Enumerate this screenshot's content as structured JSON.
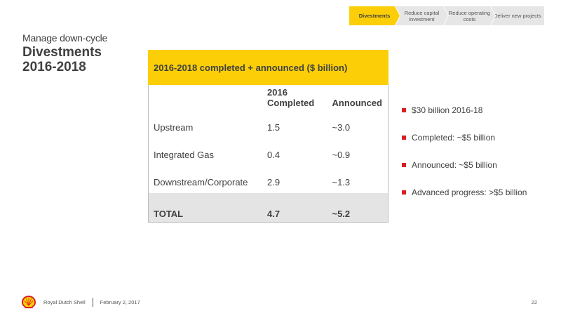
{
  "nav": {
    "steps": [
      {
        "label": "Divestments",
        "active": true
      },
      {
        "label": "Reduce capital investment",
        "active": false
      },
      {
        "label": "Reduce operating costs",
        "active": false
      },
      {
        "label": "Deliver new projects",
        "active": false
      }
    ]
  },
  "header": {
    "subtitle": "Manage down-cycle",
    "title": "Divestments 2016-2018"
  },
  "table": {
    "title": "2016-2018 completed + announced ($ billion)",
    "columns": [
      "",
      "2016 Completed",
      "Announced"
    ],
    "rows": [
      {
        "name": "Upstream",
        "completed_2016": "1.5",
        "announced": "~3.0"
      },
      {
        "name": "Integrated Gas",
        "completed_2016": "0.4",
        "announced": "~0.9"
      },
      {
        "name": "Downstream/Corporate",
        "completed_2016": "2.9",
        "announced": "~1.3"
      }
    ],
    "total": {
      "name": "TOTAL",
      "completed_2016": "4.7",
      "announced": "~5.2"
    }
  },
  "bullets": [
    "$30 billion 2016-18",
    "Completed: ~$5 billion",
    "Announced: ~$5 billion",
    "Advanced progress: >$5 billion"
  ],
  "footer": {
    "company": "Royal Dutch Shell",
    "date": "February 2, 2017",
    "page_number": "22"
  },
  "colors": {
    "accent_yellow": "#fbce07",
    "bullet_red": "#dd1d21",
    "text_gray": "#404040",
    "total_row_gray": "#e4e4e4"
  }
}
